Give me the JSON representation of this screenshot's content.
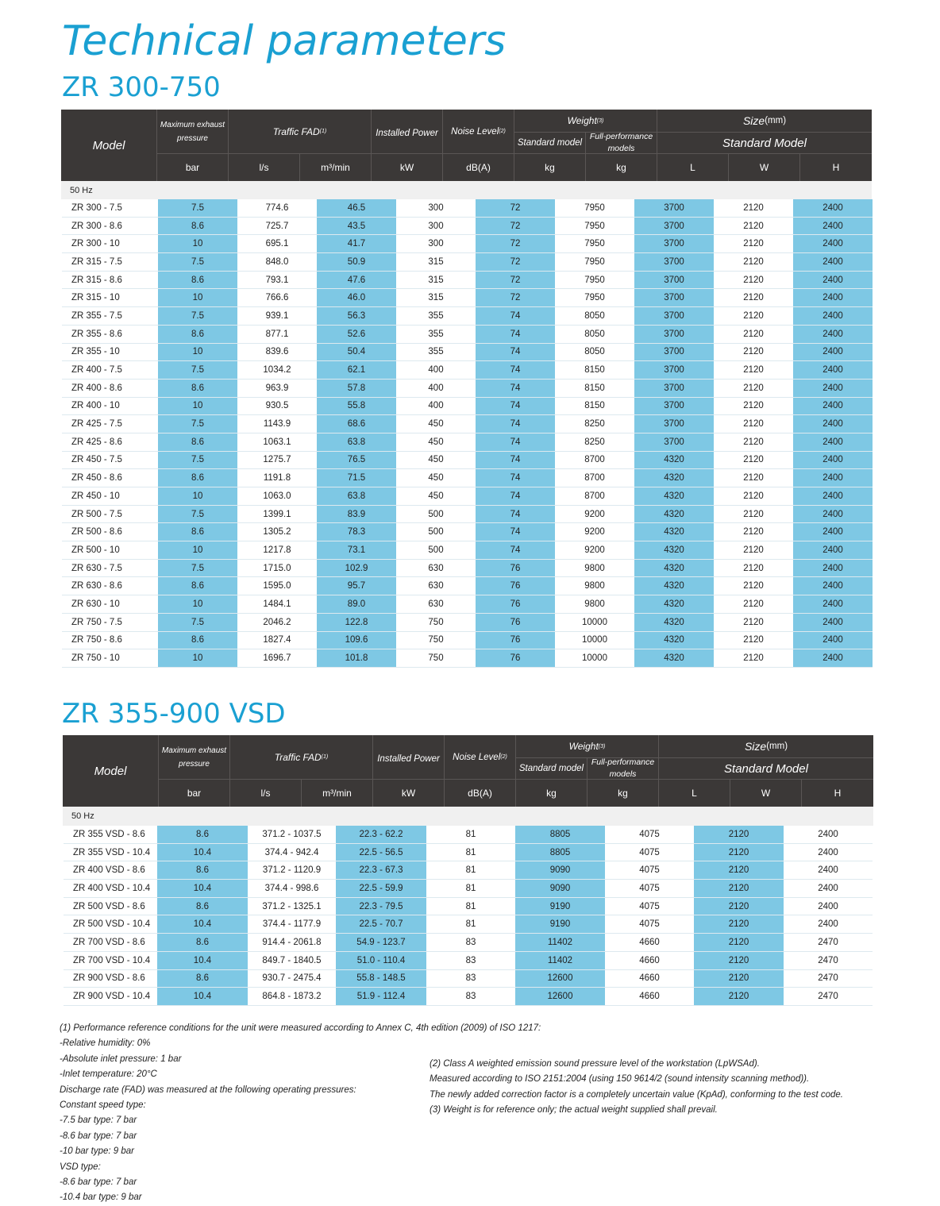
{
  "title": "Technical parameters",
  "accent_color": "#1aa0d2",
  "highlight_color": "#7ec8e4",
  "header_color": "#3b3837",
  "header": {
    "model": "Model",
    "max_pressure": "Maximum exhaust pressure",
    "fad": "Traffic FAD",
    "fad_note": "(1)",
    "power": "Installed Power",
    "noise": "Noise Level",
    "noise_note": "(2)",
    "weight": "Weight",
    "weight_note": "(3)",
    "weight_std": "Standard model",
    "weight_full": "Full-performance models",
    "size": "Size",
    "size_unit": "(mm)",
    "size_std": "Standard Model",
    "units": [
      "bar",
      "l/s",
      "m³/min",
      "kW",
      "dB(A)",
      "kg",
      "kg",
      "L",
      "W",
      "H"
    ]
  },
  "table1": {
    "heading": "ZR 300-750",
    "frequency": "50 Hz",
    "rows": [
      [
        "ZR 300 - 7.5",
        "7.5",
        "774.6",
        "46.5",
        "300",
        "72",
        "7950",
        "3700",
        "2120",
        "2400"
      ],
      [
        "ZR 300 - 8.6",
        "8.6",
        "725.7",
        "43.5",
        "300",
        "72",
        "7950",
        "3700",
        "2120",
        "2400"
      ],
      [
        "ZR 300 - 10",
        "10",
        "695.1",
        "41.7",
        "300",
        "72",
        "7950",
        "3700",
        "2120",
        "2400"
      ],
      [
        "ZR 315 - 7.5",
        "7.5",
        "848.0",
        "50.9",
        "315",
        "72",
        "7950",
        "3700",
        "2120",
        "2400"
      ],
      [
        "ZR 315 - 8.6",
        "8.6",
        "793.1",
        "47.6",
        "315",
        "72",
        "7950",
        "3700",
        "2120",
        "2400"
      ],
      [
        "ZR 315 - 10",
        "10",
        "766.6",
        "46.0",
        "315",
        "72",
        "7950",
        "3700",
        "2120",
        "2400"
      ],
      [
        "ZR 355 - 7.5",
        "7.5",
        "939.1",
        "56.3",
        "355",
        "74",
        "8050",
        "3700",
        "2120",
        "2400"
      ],
      [
        "ZR 355 - 8.6",
        "8.6",
        "877.1",
        "52.6",
        "355",
        "74",
        "8050",
        "3700",
        "2120",
        "2400"
      ],
      [
        "ZR 355 - 10",
        "10",
        "839.6",
        "50.4",
        "355",
        "74",
        "8050",
        "3700",
        "2120",
        "2400"
      ],
      [
        "ZR 400 - 7.5",
        "7.5",
        "1034.2",
        "62.1",
        "400",
        "74",
        "8150",
        "3700",
        "2120",
        "2400"
      ],
      [
        "ZR 400 - 8.6",
        "8.6",
        "963.9",
        "57.8",
        "400",
        "74",
        "8150",
        "3700",
        "2120",
        "2400"
      ],
      [
        "ZR 400 - 10",
        "10",
        "930.5",
        "55.8",
        "400",
        "74",
        "8150",
        "3700",
        "2120",
        "2400"
      ],
      [
        "ZR 425 - 7.5",
        "7.5",
        "1143.9",
        "68.6",
        "450",
        "74",
        "8250",
        "3700",
        "2120",
        "2400"
      ],
      [
        "ZR 425 - 8.6",
        "8.6",
        "1063.1",
        "63.8",
        "450",
        "74",
        "8250",
        "3700",
        "2120",
        "2400"
      ],
      [
        "ZR 450 - 7.5",
        "7.5",
        "1275.7",
        "76.5",
        "450",
        "74",
        "8700",
        "4320",
        "2120",
        "2400"
      ],
      [
        "ZR 450 - 8.6",
        "8.6",
        "1191.8",
        "71.5",
        "450",
        "74",
        "8700",
        "4320",
        "2120",
        "2400"
      ],
      [
        "ZR 450 - 10",
        "10",
        "1063.0",
        "63.8",
        "450",
        "74",
        "8700",
        "4320",
        "2120",
        "2400"
      ],
      [
        "ZR 500 - 7.5",
        "7.5",
        "1399.1",
        "83.9",
        "500",
        "74",
        "9200",
        "4320",
        "2120",
        "2400"
      ],
      [
        "ZR 500 - 8.6",
        "8.6",
        "1305.2",
        "78.3",
        "500",
        "74",
        "9200",
        "4320",
        "2120",
        "2400"
      ],
      [
        "ZR 500 - 10",
        "10",
        "1217.8",
        "73.1",
        "500",
        "74",
        "9200",
        "4320",
        "2120",
        "2400"
      ],
      [
        "ZR 630 - 7.5",
        "7.5",
        "1715.0",
        "102.9",
        "630",
        "76",
        "9800",
        "4320",
        "2120",
        "2400"
      ],
      [
        "ZR 630 - 8.6",
        "8.6",
        "1595.0",
        "95.7",
        "630",
        "76",
        "9800",
        "4320",
        "2120",
        "2400"
      ],
      [
        "ZR 630 - 10",
        "10",
        "1484.1",
        "89.0",
        "630",
        "76",
        "9800",
        "4320",
        "2120",
        "2400"
      ],
      [
        "ZR 750 - 7.5",
        "7.5",
        "2046.2",
        "122.8",
        "750",
        "76",
        "10000",
        "4320",
        "2120",
        "2400"
      ],
      [
        "ZR 750 - 8.6",
        "8.6",
        "1827.4",
        "109.6",
        "750",
        "76",
        "10000",
        "4320",
        "2120",
        "2400"
      ],
      [
        "ZR 750 - 10",
        "10",
        "1696.7",
        "101.8",
        "750",
        "76",
        "10000",
        "4320",
        "2120",
        "2400"
      ]
    ]
  },
  "table2": {
    "heading": "ZR 355-900 VSD",
    "frequency": "50 Hz",
    "rows": [
      [
        "ZR 355 VSD - 8.6",
        "8.6",
        "371.2 - 1037.5",
        "22.3 - 62.2",
        "81",
        "8805",
        "4075",
        "2120",
        "2400"
      ],
      [
        "ZR 355 VSD - 10.4",
        "10.4",
        "374.4 - 942.4",
        "22.5 - 56.5",
        "81",
        "8805",
        "4075",
        "2120",
        "2400"
      ],
      [
        "ZR 400 VSD - 8.6",
        "8.6",
        "371.2 - 1120.9",
        "22.3 - 67.3",
        "81",
        "9090",
        "4075",
        "2120",
        "2400"
      ],
      [
        "ZR 400 VSD - 10.4",
        "10.4",
        "374.4 - 998.6",
        "22.5 - 59.9",
        "81",
        "9090",
        "4075",
        "2120",
        "2400"
      ],
      [
        "ZR 500 VSD - 8.6",
        "8.6",
        "371.2 - 1325.1",
        "22.3 - 79.5",
        "81",
        "9190",
        "4075",
        "2120",
        "2400"
      ],
      [
        "ZR 500 VSD - 10.4",
        "10.4",
        "374.4 - 1177.9",
        "22.5 - 70.7",
        "81",
        "9190",
        "4075",
        "2120",
        "2400"
      ],
      [
        "ZR 700 VSD - 8.6",
        "8.6",
        "914.4 - 2061.8",
        "54.9 - 123.7",
        "83",
        "11402",
        "4660",
        "2120",
        "2470"
      ],
      [
        "ZR 700 VSD - 10.4",
        "10.4",
        "849.7 - 1840.5",
        "51.0 - 110.4",
        "83",
        "11402",
        "4660",
        "2120",
        "2470"
      ],
      [
        "ZR 900 VSD - 8.6",
        "8.6",
        "930.7 - 2475.4",
        "55.8 - 148.5",
        "83",
        "12600",
        "4660",
        "2120",
        "2470"
      ],
      [
        "ZR 900 VSD - 10.4",
        "10.4",
        "864.8 - 1873.2",
        "51.9 - 112.4",
        "83",
        "12600",
        "4660",
        "2120",
        "2470"
      ]
    ]
  },
  "notes_left": [
    "(1) Performance reference conditions for the unit were measured according to Annex C, 4th edition (2009) of ISO 1217:",
    "-Relative humidity: 0%",
    "-Absolute inlet pressure: 1 bar",
    "-Inlet temperature: 20°C",
    "Discharge rate (FAD) was measured at the following operating pressures:",
    "Constant speed type:",
    "-7.5 bar type: 7 bar",
    "-8.6 bar type: 7 bar",
    "-10 bar type: 9 bar",
    "VSD type:",
    "-8.6 bar type: 7 bar",
    "-10.4 bar type: 9 bar"
  ],
  "notes_right": [
    "(2) Class A weighted emission sound pressure level of the workstation (LpWSAd).",
    "Measured according to ISO 2151:2004 (using 150 9614/2 (sound intensity scanning method)).",
    "The newly added correction factor is a completely uncertain value (KpAd), conforming to the test code.",
    "(3) Weight is for reference only; the actual weight supplied shall prevail."
  ]
}
